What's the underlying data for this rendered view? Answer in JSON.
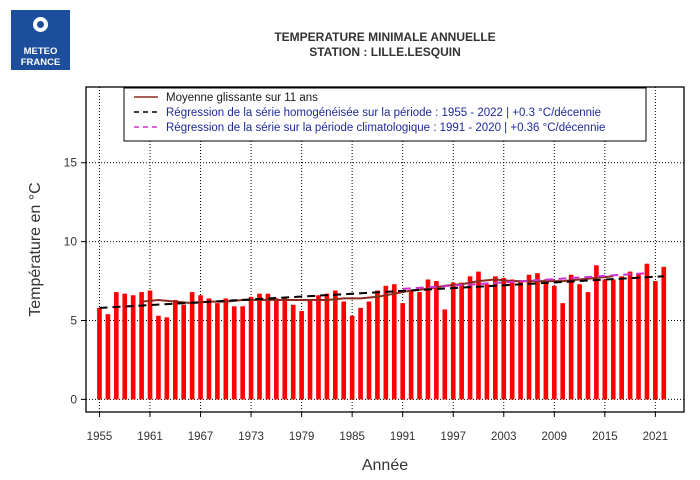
{
  "logo": {
    "line1": "METEO",
    "line2": "FRANCE"
  },
  "title_lines": [
    "TEMPERATURE MINIMALE ANNUELLE",
    "STATION : LILLE.LESQUIN"
  ],
  "chart_data": {
    "type": "bar",
    "xlabel": "Année",
    "ylabel": "Température en °C",
    "ylim": [
      -0.8,
      19.8
    ],
    "yticks": [
      0,
      5,
      10,
      15
    ],
    "xticks": [
      1955,
      1961,
      1967,
      1973,
      1979,
      1985,
      1991,
      1997,
      2003,
      2009,
      2015,
      2021
    ],
    "grid": true,
    "legend_position": "top",
    "bar_color": "#ff0000",
    "categories": [
      1955,
      1956,
      1957,
      1958,
      1959,
      1960,
      1961,
      1962,
      1963,
      1964,
      1965,
      1966,
      1967,
      1968,
      1969,
      1970,
      1971,
      1972,
      1973,
      1974,
      1975,
      1976,
      1977,
      1978,
      1979,
      1980,
      1981,
      1982,
      1983,
      1984,
      1985,
      1986,
      1987,
      1988,
      1989,
      1990,
      1991,
      1992,
      1993,
      1994,
      1995,
      1996,
      1997,
      1998,
      1999,
      2000,
      2001,
      2002,
      2003,
      2004,
      2005,
      2006,
      2007,
      2008,
      2009,
      2010,
      2011,
      2012,
      2013,
      2014,
      2015,
      2016,
      2017,
      2018,
      2019,
      2020,
      2021,
      2022
    ],
    "values": [
      5.8,
      5.4,
      6.8,
      6.7,
      6.6,
      6.8,
      6.9,
      5.3,
      5.2,
      6.3,
      6.0,
      6.8,
      6.6,
      6.4,
      6.1,
      6.4,
      5.9,
      5.9,
      6.5,
      6.7,
      6.7,
      6.4,
      6.4,
      6.0,
      5.6,
      6.3,
      6.6,
      6.7,
      6.9,
      6.2,
      5.3,
      5.8,
      6.2,
      6.9,
      7.2,
      7.3,
      6.1,
      6.9,
      6.8,
      7.6,
      7.5,
      5.7,
      7.4,
      7.4,
      7.8,
      8.1,
      7.3,
      7.8,
      7.7,
      7.6,
      7.5,
      7.9,
      8.0,
      7.6,
      7.2,
      6.1,
      7.9,
      7.3,
      6.8,
      8.5,
      7.6,
      7.6,
      7.8,
      8.1,
      8.0,
      8.6,
      7.5,
      8.4
    ],
    "series": [
      {
        "name": "Moyenne glissante sur 11 ans",
        "color": "#8b2b1f",
        "style": "solid",
        "x": [
          1960,
          1962,
          1964,
          1966,
          1968,
          1970,
          1972,
          1974,
          1976,
          1978,
          1980,
          1982,
          1984,
          1986,
          1988,
          1990,
          1992,
          1994,
          1996,
          1998,
          2000,
          2002,
          2004,
          2006,
          2008,
          2010,
          2012,
          2014,
          2016
        ],
        "values": [
          6.2,
          6.3,
          6.2,
          6.1,
          6.2,
          6.2,
          6.3,
          6.3,
          6.3,
          6.3,
          6.3,
          6.3,
          6.4,
          6.4,
          6.5,
          6.7,
          6.9,
          7.0,
          7.2,
          7.3,
          7.5,
          7.6,
          7.5,
          7.5,
          7.5,
          7.5,
          7.6,
          7.7,
          7.8
        ]
      },
      {
        "name": "Régression de la série homogénéisée sur la période : 1955 - 2022 | +0.3 °C/décennie",
        "color": "#000000",
        "style": "dashed",
        "x": [
          1955,
          2022
        ],
        "values": [
          5.8,
          7.8
        ]
      },
      {
        "name": "Régression de la série sur la période climatologique : 1991 - 2020 | +0.36 °C/décennie",
        "color": "#cc33cc",
        "style": "dashed",
        "x": [
          1991,
          2020
        ],
        "values": [
          7.0,
          8.0
        ]
      }
    ]
  }
}
